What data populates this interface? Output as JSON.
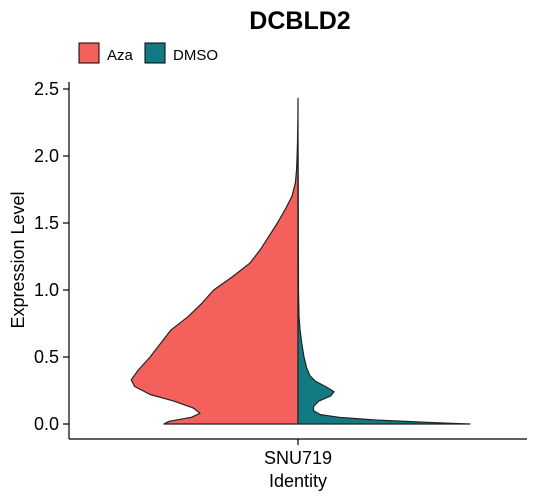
{
  "chart_data": {
    "type": "violin",
    "title": "DCBLD2",
    "xlabel": "Identity",
    "ylabel": "Expression Level",
    "categories": [
      "SNU719"
    ],
    "ylim": [
      -0.1,
      2.55
    ],
    "yticks": [
      0.0,
      0.5,
      1.0,
      1.5,
      2.0,
      2.5
    ],
    "ytick_labels": [
      "0.0",
      "0.5",
      "1.0",
      "1.5",
      "2.0",
      "2.5"
    ],
    "grid": false,
    "legend_position": "top-left",
    "split": true,
    "series": [
      {
        "name": "Aza",
        "color": "#F4605B",
        "side": "left",
        "density_half_width": [
          [
            0.0,
            0.78
          ],
          [
            0.02,
            0.75
          ],
          [
            0.05,
            0.62
          ],
          [
            0.08,
            0.57
          ],
          [
            0.12,
            0.61
          ],
          [
            0.17,
            0.72
          ],
          [
            0.22,
            0.86
          ],
          [
            0.28,
            0.95
          ],
          [
            0.33,
            0.97
          ],
          [
            0.4,
            0.93
          ],
          [
            0.5,
            0.86
          ],
          [
            0.6,
            0.8
          ],
          [
            0.7,
            0.74
          ],
          [
            0.8,
            0.64
          ],
          [
            0.9,
            0.56
          ],
          [
            1.0,
            0.49
          ],
          [
            1.1,
            0.38
          ],
          [
            1.2,
            0.28
          ],
          [
            1.3,
            0.22
          ],
          [
            1.4,
            0.17
          ],
          [
            1.5,
            0.12
          ],
          [
            1.6,
            0.075
          ],
          [
            1.7,
            0.035
          ],
          [
            1.8,
            0.015
          ],
          [
            1.9,
            0.008
          ],
          [
            2.0,
            0.005
          ],
          [
            2.1,
            0.003
          ],
          [
            2.2,
            0.0015
          ],
          [
            2.3,
            0.0008
          ],
          [
            2.43,
            0.0
          ]
        ]
      },
      {
        "name": "DMSO",
        "color": "#117A82",
        "side": "right",
        "density_half_width": [
          [
            0.0,
            1.0
          ],
          [
            0.01,
            0.8
          ],
          [
            0.03,
            0.45
          ],
          [
            0.05,
            0.24
          ],
          [
            0.07,
            0.13
          ],
          [
            0.1,
            0.09
          ],
          [
            0.13,
            0.09
          ],
          [
            0.17,
            0.12
          ],
          [
            0.21,
            0.19
          ],
          [
            0.24,
            0.21
          ],
          [
            0.28,
            0.16
          ],
          [
            0.32,
            0.1
          ],
          [
            0.36,
            0.07
          ],
          [
            0.42,
            0.05
          ],
          [
            0.5,
            0.035
          ],
          [
            0.6,
            0.022
          ],
          [
            0.7,
            0.012
          ],
          [
            0.8,
            0.006
          ],
          [
            1.0,
            0.003
          ],
          [
            1.4,
            0.002
          ],
          [
            1.8,
            0.001
          ],
          [
            2.1,
            0.0
          ]
        ]
      }
    ]
  }
}
